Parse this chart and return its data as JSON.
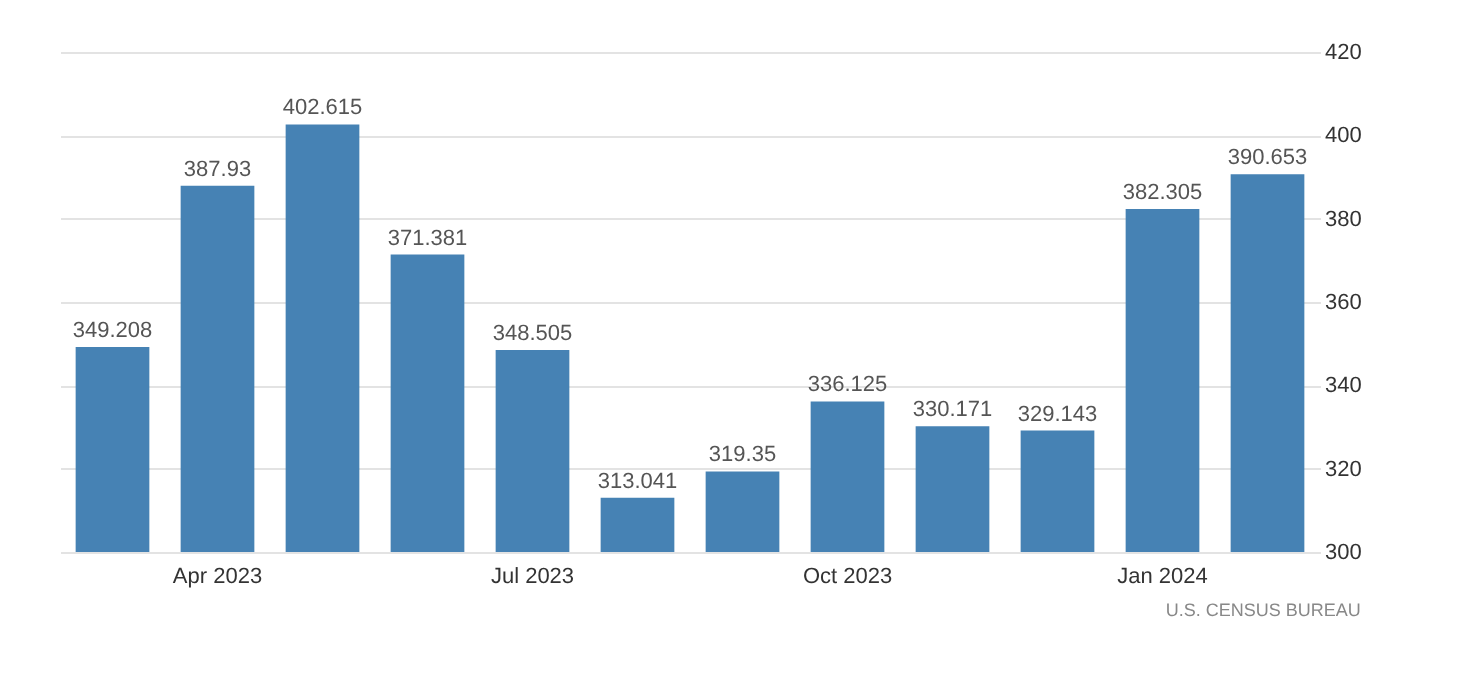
{
  "chart_data": {
    "type": "bar",
    "categories": [
      null,
      "Apr 2023",
      null,
      null,
      "Jul 2023",
      null,
      null,
      "Oct 2023",
      null,
      null,
      "Jan 2024",
      null
    ],
    "values": [
      349.208,
      387.93,
      402.615,
      371.381,
      348.505,
      313.041,
      319.35,
      336.125,
      330.171,
      329.143,
      382.305,
      390.653
    ],
    "color": "#4682b4",
    "ylim": [
      300,
      420
    ],
    "yticks": [
      300,
      320,
      340,
      360,
      380,
      400,
      420
    ],
    "grid": "y",
    "data_labels": true,
    "annotations": [
      "U.S. CENSUS BUREAU"
    ]
  }
}
